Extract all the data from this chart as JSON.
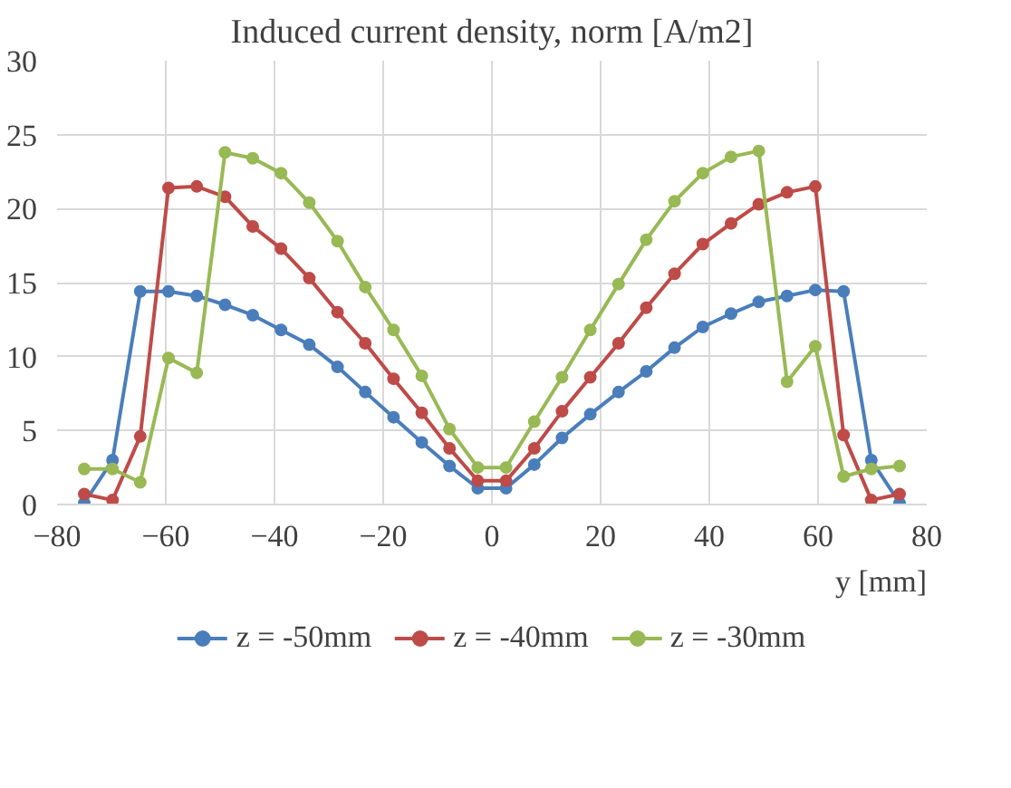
{
  "chart_data": {
    "type": "line",
    "title": "Induced current density, norm [A/m2]",
    "xlabel": "y [mm]",
    "x": [
      -75,
      -69.8,
      -64.7,
      -59.5,
      -54.3,
      -49.1,
      -44.0,
      -38.8,
      -33.6,
      -28.4,
      -23.3,
      -18.1,
      -12.9,
      -7.8,
      -2.6,
      2.6,
      7.8,
      12.9,
      18.1,
      23.3,
      28.4,
      33.6,
      38.8,
      44.0,
      49.1,
      54.3,
      59.5,
      64.7,
      69.8,
      75
    ],
    "series": [
      {
        "name": "z = -50mm",
        "color": "#4a7ebb",
        "values": [
          0.1,
          3.0,
          14.4,
          14.4,
          14.1,
          13.5,
          12.8,
          11.8,
          10.8,
          9.3,
          7.6,
          5.9,
          4.2,
          2.6,
          1.1,
          1.1,
          2.7,
          4.5,
          6.1,
          7.6,
          9.0,
          10.6,
          12.0,
          12.9,
          13.7,
          14.1,
          14.5,
          14.4,
          3.0,
          0.1
        ]
      },
      {
        "name": "z = -40mm",
        "color": "#be4b48",
        "values": [
          0.7,
          0.3,
          4.6,
          21.4,
          21.5,
          20.8,
          18.8,
          17.3,
          15.3,
          13.0,
          10.9,
          8.5,
          6.2,
          3.8,
          1.6,
          1.6,
          3.8,
          6.3,
          8.6,
          10.9,
          13.3,
          15.6,
          17.6,
          19.0,
          20.3,
          21.1,
          21.5,
          4.7,
          0.3,
          0.7
        ]
      },
      {
        "name": "z = -30mm",
        "color": "#98b954",
        "values": [
          2.4,
          2.4,
          1.5,
          9.9,
          8.9,
          23.8,
          23.4,
          22.4,
          20.4,
          17.8,
          14.7,
          11.8,
          8.7,
          5.1,
          2.5,
          2.5,
          5.6,
          8.6,
          11.8,
          14.9,
          17.9,
          20.5,
          22.4,
          23.5,
          23.9,
          8.3,
          10.7,
          1.9,
          2.4,
          2.6
        ]
      }
    ],
    "xlim": [
      -80,
      80
    ],
    "xticks": [
      -80,
      -60,
      -40,
      -20,
      0,
      20,
      40,
      60,
      80
    ],
    "ylim": [
      0,
      30
    ],
    "yticks": [
      0,
      5,
      10,
      15,
      20,
      25,
      30
    ],
    "grid": true,
    "legend": "bottom",
    "marker": "circle",
    "line_style": "solid"
  }
}
